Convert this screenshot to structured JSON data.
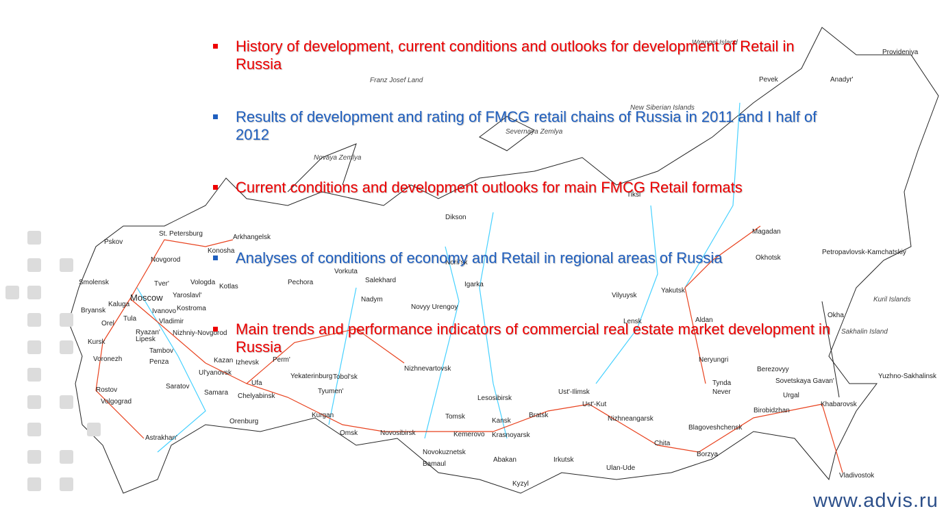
{
  "bullets": [
    "History of development, current conditions and outlooks for development of Retail in Russia",
    "Results of development and rating of FMCG retail chains of Russia in 2011 and I half of 2012",
    "Current conditions and development outlooks for main FMCG Retail formats",
    "Analyses of conditions of economy and Retail in regional areas of Russia",
    "Main trends and performance indicators of commercial real estate market development in Russia"
  ],
  "map_labels": [
    "Provideniya",
    "Wrangel Island",
    "Pevek",
    "Anadyr'",
    "Franz Josef Land",
    "New Siberian Islands",
    "Severnaya Zemlya",
    "Novaya Zemlya",
    "Tiksi",
    "Dikson",
    "Magadan",
    "Petropavlovsk-Kamchatskiy",
    "Okhotsk",
    "Pskov",
    "St. Petersburg",
    "Arkhangelsk",
    "Novgorod",
    "Konosha",
    "Smolensk",
    "Tver'",
    "Vologda",
    "Kotlas",
    "Pechora",
    "Vorkuta",
    "Salekhard",
    "Noril'sk",
    "Igarka",
    "Vilyuysk",
    "Yakutsk",
    "Kuril Islands",
    "Moscow",
    "Yaroslavl'",
    "Kaluga",
    "Bryansk",
    "Ivanovo",
    "Kostroma",
    "Nadym",
    "Novyy Urengoy",
    "Tula",
    "Vladimir",
    "Orel",
    "Ryazan'",
    "Nizhniy-Novgorod",
    "Lensk",
    "Aldan",
    "Okha",
    "Sakhalin Island",
    "Kursk",
    "Lipesk",
    "Tambov",
    "Voronezh",
    "Penza",
    "Kazan",
    "Izhevsk",
    "Perm'",
    "Nizhnevartovsk",
    "Neryungri",
    "Berezovyy",
    "Ul'yanovsk",
    "Yekaterinburg",
    "Tobol'sk",
    "Sovetskaya Gavan'",
    "Yuzhno-Sakhalinsk",
    "Saratov",
    "Ufa",
    "Samara",
    "Chelyabinsk",
    "Tyumen'",
    "Tynda",
    "Never",
    "Ust'-Ilimsk",
    "Lesosibirsk",
    "Urgal",
    "Rostov",
    "Volgograd",
    "Ust'-Kut",
    "Khabarovsk",
    "Birobidzhan",
    "Bratsk",
    "Kurgan",
    "Orenburg",
    "Tomsk",
    "Kansk",
    "Nizhneangarsk",
    "Blagoveshchensk",
    "Omsk",
    "Novosibirsk",
    "Kemerovo",
    "Krasnoyarsk",
    "Astrakhan'",
    "Chita",
    "Novokuznetsk",
    "Borzya",
    "Abakan",
    "Irkutsk",
    "Bamaul",
    "Ulan-Ude",
    "Vladivostok",
    "Kyzyl"
  ],
  "footer": {
    "url": "www.advis.ru"
  }
}
